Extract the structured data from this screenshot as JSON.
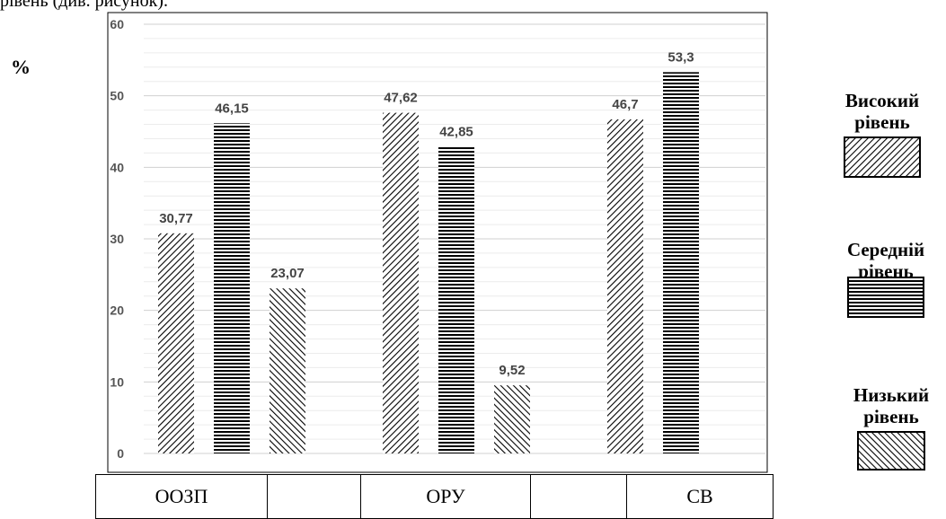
{
  "doc_fragment": "рівень (див. рисунок).",
  "chart_data": {
    "type": "bar",
    "unit_label": "%",
    "categories": [
      "ООЗП",
      "ОРУ",
      "СВ"
    ],
    "series": [
      {
        "name": "Високий рівень",
        "values": [
          30.77,
          47.62,
          46.7
        ],
        "labels": [
          "30,77",
          "47,62",
          "46,7"
        ],
        "pattern": "diagonal-up"
      },
      {
        "name": "Середній рівень",
        "values": [
          46.15,
          42.85,
          53.3
        ],
        "labels": [
          "46,15",
          "42,85",
          "53,3"
        ],
        "pattern": "horizontal"
      },
      {
        "name": "Низький рівень",
        "values": [
          23.07,
          9.52,
          null
        ],
        "labels": [
          "23,07",
          "9,52",
          ""
        ],
        "pattern": "diagonal-down"
      }
    ],
    "ylim": [
      0,
      60
    ],
    "yticks": [
      "0",
      "10",
      "20",
      "30",
      "40",
      "50",
      "60"
    ],
    "grid": true,
    "legend_position": "right"
  }
}
